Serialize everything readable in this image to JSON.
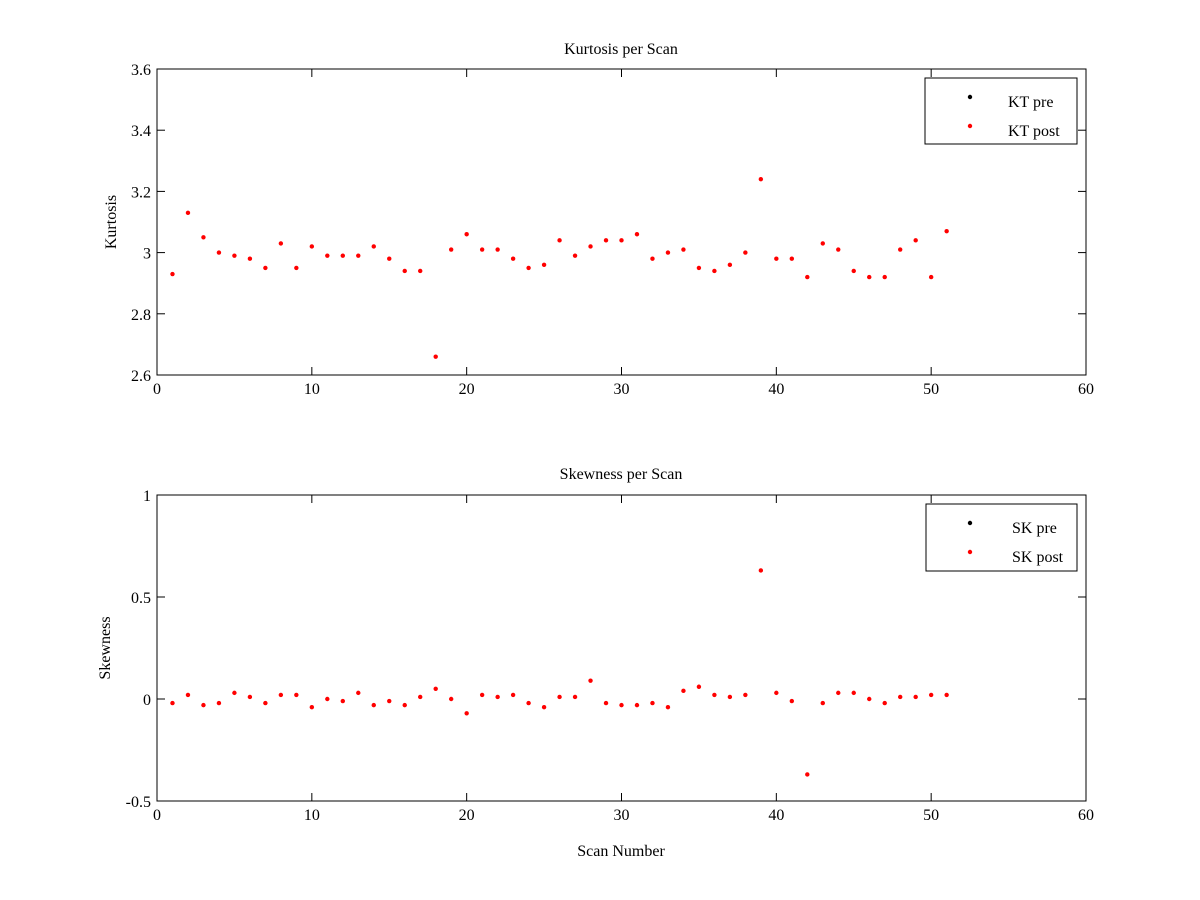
{
  "chart_data": [
    {
      "type": "scatter",
      "title": "Kurtosis per Scan",
      "xlabel": "",
      "ylabel": "Kurtosis",
      "xlim": [
        0,
        60
      ],
      "ylim": [
        2.6,
        3.6
      ],
      "xticks": [
        "0",
        "10",
        "20",
        "30",
        "40",
        "50",
        "60"
      ],
      "yticks": [
        "2.6",
        "2.8",
        "3",
        "3.2",
        "3.4",
        "3.6"
      ],
      "xtick_values": [
        0,
        10,
        20,
        30,
        40,
        50,
        60
      ],
      "ytick_values": [
        2.6,
        2.8,
        3.0,
        3.2,
        3.4,
        3.6
      ],
      "grid": false,
      "legend_position": "top-right",
      "series": [
        {
          "name": "KT pre",
          "color": "#000000",
          "x": [],
          "y": []
        },
        {
          "name": "KT post",
          "color": "#ff0000",
          "x": [
            1,
            2,
            3,
            4,
            5,
            6,
            7,
            8,
            9,
            10,
            11,
            12,
            13,
            14,
            15,
            16,
            17,
            18,
            19,
            20,
            21,
            22,
            23,
            24,
            25,
            26,
            27,
            28,
            29,
            30,
            31,
            32,
            33,
            34,
            35,
            36,
            37,
            38,
            39,
            40,
            41,
            42,
            43,
            44,
            45,
            46,
            47,
            48,
            49,
            50,
            51
          ],
          "y": [
            2.93,
            3.13,
            3.05,
            3.0,
            2.99,
            2.98,
            2.95,
            3.03,
            2.95,
            3.02,
            2.99,
            2.99,
            2.99,
            3.02,
            2.98,
            2.94,
            2.94,
            2.66,
            3.01,
            3.06,
            3.01,
            3.01,
            2.98,
            2.95,
            2.96,
            3.04,
            2.99,
            3.02,
            3.04,
            3.04,
            3.06,
            2.98,
            3.0,
            3.01,
            2.95,
            2.94,
            2.96,
            3.0,
            3.24,
            2.98,
            2.98,
            2.92,
            3.03,
            3.01,
            2.94,
            2.92,
            2.92,
            3.01,
            3.04,
            2.92,
            3.07
          ]
        }
      ]
    },
    {
      "type": "scatter",
      "title": "Skewness per Scan",
      "xlabel": "Scan Number",
      "ylabel": "Skewness",
      "xlim": [
        0,
        60
      ],
      "ylim": [
        -0.5,
        1
      ],
      "xticks": [
        "0",
        "10",
        "20",
        "30",
        "40",
        "50",
        "60"
      ],
      "yticks": [
        "-0.5",
        "0",
        "0.5",
        "1"
      ],
      "xtick_values": [
        0,
        10,
        20,
        30,
        40,
        50,
        60
      ],
      "ytick_values": [
        -0.5,
        0,
        0.5,
        1
      ],
      "grid": false,
      "legend_position": "top-right",
      "series": [
        {
          "name": "SK pre",
          "color": "#000000",
          "x": [],
          "y": []
        },
        {
          "name": "SK post",
          "color": "#ff0000",
          "x": [
            1,
            2,
            3,
            4,
            5,
            6,
            7,
            8,
            9,
            10,
            11,
            12,
            13,
            14,
            15,
            16,
            17,
            18,
            19,
            20,
            21,
            22,
            23,
            24,
            25,
            26,
            27,
            28,
            29,
            30,
            31,
            32,
            33,
            34,
            35,
            36,
            37,
            38,
            39,
            40,
            41,
            42,
            43,
            44,
            45,
            46,
            47,
            48,
            49,
            50,
            51
          ],
          "y": [
            -0.02,
            0.02,
            -0.03,
            -0.02,
            0.03,
            0.01,
            -0.02,
            0.02,
            0.02,
            -0.04,
            0.0,
            -0.01,
            0.03,
            -0.03,
            -0.01,
            -0.03,
            0.01,
            0.05,
            0.0,
            -0.07,
            0.02,
            0.01,
            0.02,
            -0.02,
            -0.04,
            0.01,
            0.01,
            0.09,
            -0.02,
            -0.03,
            -0.03,
            -0.02,
            -0.04,
            0.04,
            0.06,
            0.02,
            0.01,
            0.02,
            0.63,
            0.03,
            -0.01,
            -0.37,
            -0.02,
            0.03,
            0.03,
            0.0,
            -0.02,
            0.01,
            0.01,
            0.02,
            0.02
          ]
        }
      ]
    }
  ]
}
